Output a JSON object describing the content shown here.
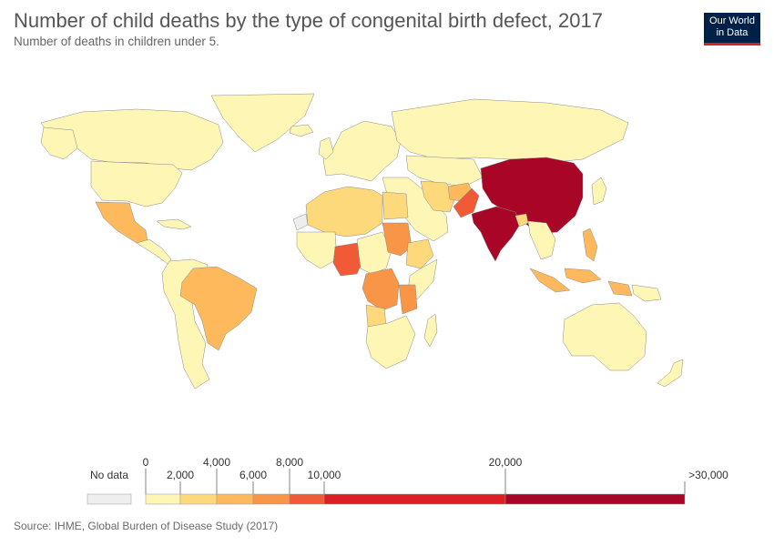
{
  "header": {
    "title": "Number of child deaths by the type of congenital birth defect, 2017",
    "subtitle": "Number of deaths in children under 5."
  },
  "logo": {
    "line1": "Our World",
    "line2": "in Data"
  },
  "legend": {
    "no_data_label": "No data",
    "no_data_color": "#eeeeee",
    "bins": [
      {
        "from": 0,
        "to": 2000,
        "color": "#fef6b4"
      },
      {
        "from": 2000,
        "to": 4000,
        "color": "#fed97b"
      },
      {
        "from": 4000,
        "to": 6000,
        "color": "#fdb95c"
      },
      {
        "from": 6000,
        "to": 8000,
        "color": "#f99547"
      },
      {
        "from": 8000,
        "to": 10000,
        "color": "#f05a36"
      },
      {
        "from": 10000,
        "to": 20000,
        "color": "#dc1f25"
      },
      {
        "from": 20000,
        "to": 30000,
        "color": "#a90526"
      }
    ],
    "tick_labels": [
      "0",
      "2,000",
      "4,000",
      "6,000",
      "8,000",
      "10,000",
      "20,000",
      ">30,000"
    ]
  },
  "map_data": {
    "type": "choropleth",
    "unit": "deaths",
    "highlighted_regions": [
      {
        "name": "China",
        "bin": ">30,000"
      },
      {
        "name": "India",
        "bin": ">30,000"
      },
      {
        "name": "Pakistan",
        "bin": "8,000–10,000"
      },
      {
        "name": "Nigeria",
        "bin": "8,000–10,000"
      },
      {
        "name": "DR Congo",
        "bin": "6,000–8,000"
      },
      {
        "name": "Tanzania",
        "bin": "6,000–8,000"
      },
      {
        "name": "Sudan",
        "bin": "6,000–8,000"
      },
      {
        "name": "Brazil",
        "bin": "4,000–6,000"
      },
      {
        "name": "Mexico",
        "bin": "4,000–6,000"
      },
      {
        "name": "Indonesia",
        "bin": "4,000–6,000"
      },
      {
        "name": "Philippines",
        "bin": "4,000–6,000"
      },
      {
        "name": "Afghanistan",
        "bin": "4,000–6,000"
      },
      {
        "name": "Ethiopia",
        "bin": "2,000–4,000"
      },
      {
        "name": "Egypt",
        "bin": "2,000–4,000"
      },
      {
        "name": "Iran",
        "bin": "2,000–4,000"
      },
      {
        "name": "Bangladesh",
        "bin": "2,000–4,000"
      },
      {
        "name": "Angola",
        "bin": "2,000–4,000"
      },
      {
        "name": "Western Sahara",
        "bin": "No data"
      }
    ]
  },
  "footer": {
    "source": "Source: IHME, Global Burden of Disease Study (2017)"
  }
}
